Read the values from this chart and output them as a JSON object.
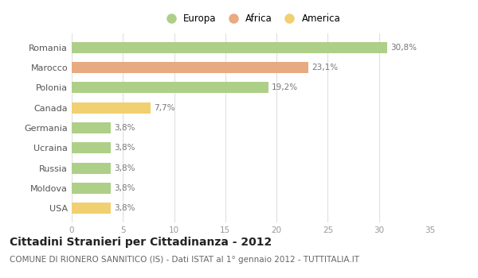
{
  "categories": [
    "Romania",
    "Marocco",
    "Polonia",
    "Canada",
    "Germania",
    "Ucraina",
    "Russia",
    "Moldova",
    "USA"
  ],
  "values": [
    30.8,
    23.1,
    19.2,
    7.7,
    3.8,
    3.8,
    3.8,
    3.8,
    3.8
  ],
  "labels": [
    "30,8%",
    "23,1%",
    "19,2%",
    "7,7%",
    "3,8%",
    "3,8%",
    "3,8%",
    "3,8%",
    "3,8%"
  ],
  "colors": [
    "#aecf88",
    "#e8aa80",
    "#aecf88",
    "#f0d070",
    "#aecf88",
    "#aecf88",
    "#aecf88",
    "#aecf88",
    "#f0d070"
  ],
  "legend_labels": [
    "Europa",
    "Africa",
    "America"
  ],
  "legend_colors": [
    "#aecf88",
    "#e8aa80",
    "#f0d070"
  ],
  "xlim": [
    0,
    35
  ],
  "xticks": [
    0,
    5,
    10,
    15,
    20,
    25,
    30,
    35
  ],
  "title": "Cittadini Stranieri per Cittadinanza - 2012",
  "subtitle": "COMUNE DI RIONERO SANNITICO (IS) - Dati ISTAT al 1° gennaio 2012 - TUTTITALIA.IT",
  "bg_color": "#ffffff",
  "grid_color": "#e0e0e0",
  "bar_height": 0.55,
  "title_fontsize": 10,
  "subtitle_fontsize": 7.5,
  "label_fontsize": 7.5,
  "tick_fontsize": 7.5,
  "legend_fontsize": 8.5,
  "ytick_fontsize": 8
}
